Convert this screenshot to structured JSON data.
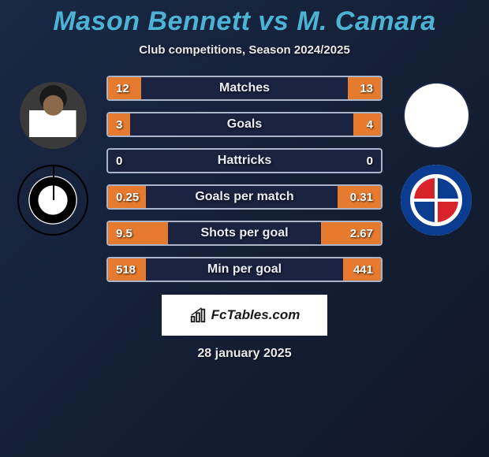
{
  "title": "Mason Bennett vs M. Camara",
  "subtitle": "Club competitions, Season 2024/2025",
  "date": "28 january 2025",
  "brand": "FcTables.com",
  "colors": {
    "title": "#4db3d4",
    "fill": "#e67a2e",
    "bar_border": "#aab4c8",
    "bar_bg": "#1a2440",
    "text": "#e8e8e8",
    "bg_grad_start": "#1a2845",
    "bg_grad_end": "#0f1828"
  },
  "stats": [
    {
      "label": "Matches",
      "left_val": "12",
      "right_val": "13",
      "left_pct": 12,
      "right_pct": 12
    },
    {
      "label": "Goals",
      "left_val": "3",
      "right_val": "4",
      "left_pct": 8,
      "right_pct": 10
    },
    {
      "label": "Hattricks",
      "left_val": "0",
      "right_val": "0",
      "left_pct": 0,
      "right_pct": 0
    },
    {
      "label": "Goals per match",
      "left_val": "0.25",
      "right_val": "0.31",
      "left_pct": 14,
      "right_pct": 16
    },
    {
      "label": "Shots per goal",
      "left_val": "9.5",
      "right_val": "2.67",
      "left_pct": 22,
      "right_pct": 22
    },
    {
      "label": "Min per goal",
      "left_val": "518",
      "right_val": "441",
      "left_pct": 14,
      "right_pct": 14
    }
  ],
  "players": {
    "left": {
      "name": "Mason Bennett",
      "club_badge": "shield-black-white"
    },
    "right": {
      "name": "M. Camara",
      "club_badge": "reading-fc"
    }
  }
}
